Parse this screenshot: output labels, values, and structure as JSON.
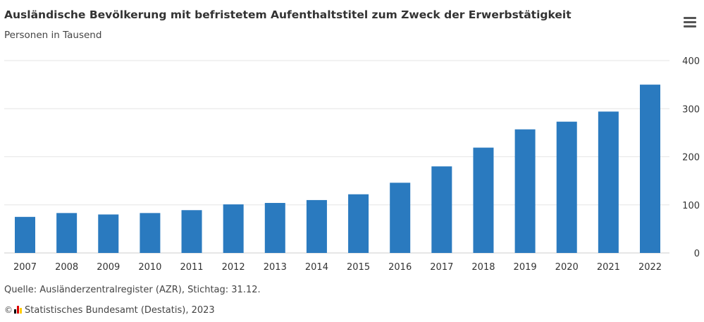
{
  "header": {
    "title": "Ausländische Bevölkerung mit befristetem Aufenthaltstitel zum Zweck der Erwerbstätigkeit",
    "subtitle": "Personen in Tausend",
    "menu_icon": "hamburger-menu-icon"
  },
  "footer": {
    "source": "Quelle: Ausländerzentralregister (AZR), Stichtag: 31.12.",
    "copyright_symbol": "©",
    "copyright_logo_icon": "destatis-logo-icon",
    "copyright": "Statistisches Bundesamt (Destatis), 2023"
  },
  "colors": {
    "bar": "#2a7abf",
    "grid": "#e6e6e6",
    "text": "#333333"
  },
  "chart_data": {
    "type": "bar",
    "title": "Ausländische Bevölkerung mit befristetem Aufenthaltstitel zum Zweck der Erwerbstätigkeit",
    "subtitle": "Personen in Tausend",
    "xlabel": "",
    "ylabel": "",
    "categories": [
      "2007",
      "2008",
      "2009",
      "2010",
      "2011",
      "2012",
      "2013",
      "2014",
      "2015",
      "2016",
      "2017",
      "2018",
      "2019",
      "2020",
      "2021",
      "2022"
    ],
    "values": [
      75,
      83,
      80,
      83,
      89,
      101,
      104,
      110,
      122,
      146,
      180,
      219,
      257,
      273,
      294,
      350
    ],
    "ylim": [
      0,
      400
    ],
    "yticks": [
      "0",
      "100",
      "200",
      "300",
      "400"
    ],
    "y_axis_side": "right",
    "grid": true,
    "legend": "none"
  }
}
